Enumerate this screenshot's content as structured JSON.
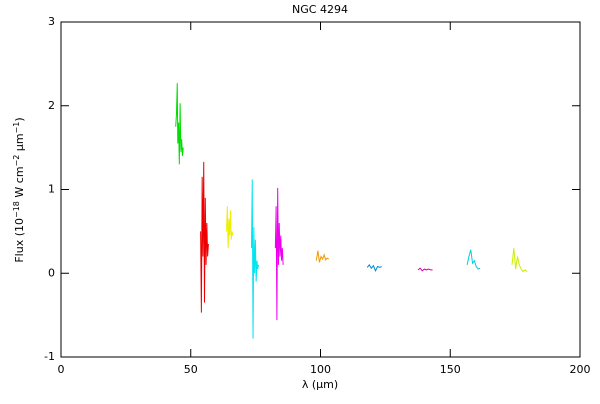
{
  "chart_data": {
    "type": "line",
    "title": "NGC 4294",
    "xlabel": "λ (μm)",
    "ylabel": [
      "Flux (10",
      "−18",
      " W cm",
      "−2",
      " μm",
      "−1",
      ")"
    ],
    "xlim": [
      0,
      200
    ],
    "xticks": [
      0,
      50,
      100,
      150,
      200
    ],
    "ylim": [
      -1,
      3
    ],
    "yticks": [
      -1,
      0,
      1,
      2,
      3
    ],
    "series": [
      {
        "color": "#00dd00",
        "x": [
          44.2,
          44.5,
          44.8,
          45.0,
          45.3,
          45.6,
          45.9,
          46.2,
          46.5,
          46.8,
          47.1
        ],
        "values": [
          1.75,
          1.9,
          2.27,
          1.55,
          1.8,
          1.3,
          2.03,
          1.45,
          1.6,
          1.4,
          1.5
        ]
      },
      {
        "color": "#ee0000",
        "x": [
          53.8,
          54.1,
          54.4,
          54.7,
          55.0,
          55.3,
          55.6,
          55.9,
          56.2,
          56.5,
          56.8
        ],
        "values": [
          0.5,
          -0.47,
          1.15,
          0.2,
          1.33,
          -0.35,
          0.9,
          0.1,
          0.6,
          0.2,
          0.35
        ]
      },
      {
        "color": "#eeee00",
        "x": [
          63.8,
          64.1,
          64.4,
          64.7,
          65.0,
          65.3,
          65.6,
          65.9,
          66.2
        ],
        "values": [
          0.5,
          0.8,
          0.3,
          0.65,
          0.45,
          0.75,
          0.4,
          0.5,
          0.45
        ]
      },
      {
        "color": "#00e5ee",
        "x": [
          73.4,
          73.7,
          74.0,
          74.3,
          74.6,
          74.9,
          75.2,
          75.5,
          75.8,
          76.1
        ],
        "values": [
          0.3,
          1.12,
          -0.78,
          0.55,
          0.0,
          0.4,
          -0.1,
          0.15,
          0.05,
          0.1
        ]
      },
      {
        "color": "#ee00ee",
        "x": [
          82.6,
          82.9,
          83.2,
          83.5,
          83.8,
          84.1,
          84.4,
          84.7,
          85.0,
          85.3,
          85.6
        ],
        "values": [
          0.3,
          0.8,
          -0.56,
          1.02,
          0.1,
          0.6,
          0.2,
          0.45,
          0.15,
          0.3,
          0.1
        ]
      },
      {
        "color": "#ee9900",
        "x": [
          98.4,
          99.0,
          99.6,
          100.2,
          100.8,
          101.4,
          102.0,
          102.6,
          103.2
        ],
        "values": [
          0.15,
          0.27,
          0.13,
          0.2,
          0.17,
          0.22,
          0.16,
          0.18,
          0.17
        ]
      },
      {
        "color": "#0088cc",
        "x": [
          118,
          118.8,
          119.6,
          120.4,
          121.2,
          122,
          122.8,
          123.6
        ],
        "values": [
          0.07,
          0.1,
          0.06,
          0.09,
          0.03,
          0.08,
          0.07,
          0.08
        ]
      },
      {
        "color": "#dd00aa",
        "x": [
          137.6,
          138.4,
          139.2,
          140,
          140.8,
          141.6,
          142.4,
          143.2
        ],
        "values": [
          0.04,
          0.06,
          0.03,
          0.05,
          0.04,
          0.05,
          0.04,
          0.04
        ]
      },
      {
        "color": "#00ccdd",
        "x": [
          156.5,
          157.2,
          157.9,
          158.6,
          159.3,
          160,
          160.7,
          161.5
        ],
        "values": [
          0.1,
          0.2,
          0.28,
          0.12,
          0.15,
          0.08,
          0.05,
          0.06
        ]
      },
      {
        "color": "#ccee00",
        "x": [
          173.8,
          174.5,
          175.2,
          175.9,
          176.6,
          177.3,
          178,
          178.8,
          179.6
        ],
        "values": [
          0.1,
          0.3,
          0.05,
          0.2,
          0.1,
          0.05,
          0.02,
          0.04,
          0.02
        ]
      }
    ]
  }
}
